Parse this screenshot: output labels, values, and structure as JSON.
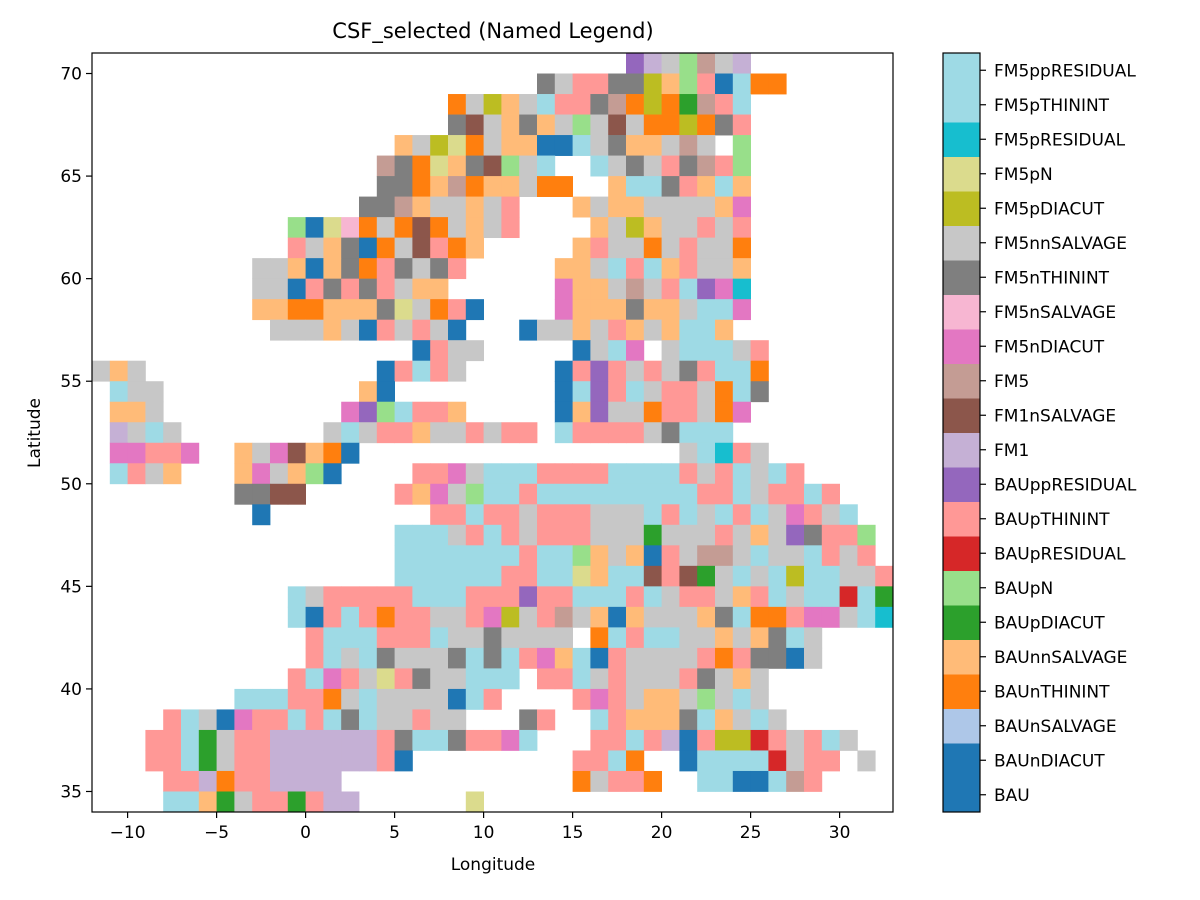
{
  "chart_data": {
    "type": "heatmap",
    "title": "CSF_selected (Named Legend)",
    "xlabel": "Longitude",
    "ylabel": "Latitude",
    "xlim": [
      -12,
      33
    ],
    "ylim": [
      34,
      71
    ],
    "x_ticks": [
      -10,
      -5,
      0,
      5,
      10,
      15,
      20,
      25,
      30
    ],
    "y_ticks": [
      35,
      40,
      45,
      50,
      55,
      60,
      65,
      70
    ],
    "x_tick_labels": [
      "−10",
      "−5",
      "0",
      "5",
      "10",
      "15",
      "20",
      "25",
      "30"
    ],
    "y_tick_labels": [
      "35",
      "40",
      "45",
      "50",
      "55",
      "60",
      "65",
      "70"
    ],
    "grid": false,
    "cell_size_degrees": 1,
    "colorbar": {
      "placement": "right",
      "categories": [
        "BAU",
        "BAUnDIACUT",
        "BAUnSALVAGE",
        "BAUnTHININT",
        "BAUnnSALVAGE",
        "BAUpDIACUT",
        "BAUpN",
        "BAUpRESIDUAL",
        "BAUpTHININT",
        "BAUppRESIDUAL",
        "FM1",
        "FM1nSALVAGE",
        "FM5",
        "FM5nDIACUT",
        "FM5nSALVAGE",
        "FM5nTHININT",
        "FM5nnSALVAGE",
        "FM5pDIACUT",
        "FM5pN",
        "FM5pRESIDUAL",
        "FM5pTHININT",
        "FM5ppRESIDUAL"
      ],
      "colors": [
        "#1f77b4",
        "#1f77b4",
        "#aec7e8",
        "#ff7f0e",
        "#ffbb78",
        "#2ca02c",
        "#98df8a",
        "#d62728",
        "#ff9896",
        "#9467bd",
        "#c5b0d5",
        "#8c564b",
        "#c49c94",
        "#e377c2",
        "#f7b6d2",
        "#7f7f7f",
        "#c7c7c7",
        "#bcbd22",
        "#dbdb8d",
        "#17becf",
        "#9edae5",
        "#9edae5"
      ]
    },
    "palette_keys": {
      "B": "#1f77b4",
      "O": "#ff7f0e",
      "o": "#ffbb78",
      "G": "#2ca02c",
      "g": "#98df8a",
      "R": "#d62728",
      "r": "#ff9896",
      "P": "#9467bd",
      "p": "#c5b0d5",
      "N": "#8c564b",
      "n": "#c49c94",
      "K": "#e377c2",
      "k": "#f7b6d2",
      "D": "#7f7f7f",
      "S": "#c7c7c7",
      "Y": "#bcbd22",
      "y": "#dbdb8d",
      "C": "#17becf",
      "c": "#9edae5"
    },
    "grid_cells": {
      "lon_start": -12,
      "lat_top": 71,
      "rows": [
        "                              PpSgnSp     ",
        "                         DSrrDDYogrBcOO",
        "                    OSYoScrrDnOYOGnrc",
        "                    DNSoDoSgSNSOOYODr",
        "                 oSYyOSooBBcSDooSnS g",
        "                nDOyoDNgSc  cSDSrDnrg",
        "                DDOonOooSOO  occDroco",
        "               DDnoSSoSr   oSooSSSSoK",
        "           gBykOSONOSoSr    oSYoSSrSr",
        "           rSoDBOSNrOo     orSSOSrSSO",
        "         SSoBoDOrDSDr     ooScrcorSSo",
        "         SSBrDrDrSoo      KooSnSrcPKC",
        "         ooOOoooDySOrB    KoooDooSccK",
        "          SSSoSBrSrSB   BSSoSroSocco",
        "                  BrSS     BScK ScccSr",
        "SoS             BrcrS     BrPrSrSDrccO",
        " cSS           oB         BcPrcSrrSOcD",
        " ooS          KPgcrro     BoPSSOrrSOK",
        " pScS        ScSrroSSrSrrscrrrrSDccc",
        " KKrrK  oSKNoOB                  ScCrS",
        " crSo   oKSogB    rrKScccrrrrccccrSrcScr",
        "        DDNN     roKSgccrcccccccccrrcSrrcr",
        "         B         rrcrrSrrrSSScrcScrcSKrSc",
        "                 cccSrcrSrrrSSSGSSSrSoSPDrrg",
        "                 cccccccrccgoSoBrSnnScSScrSr",
        "                 ccccccrrccyoccNrNGScScYccSSr",
        "           cSrrrrrcccrrrPrrcccrcSrrSorcSccRcG",
        "           cBrcrOrrSSrKYSrnSoBoSSSoDcOOrKKScCGB",
        "            rcccrrrcSSDSSSSsOcrccSSoSoDcS",
        "            rcScDSSSDcDcrKocBrSSSSrOrDDBS",
        "           rcKrSyrDSSccc rrcSrSSSrDSoS",
        "        cccrrOScSSSSBcr    rKrSooSgScS",
        "    rcSBKrrcrcDcSSrSS   Dr  croooDcoScS",
        "   rrcGSrrpppppprDccDrrKc   rrcrpBrYYRrSrcS",
        "   rrcGSrrpppppprB         rrcO  BccccRSrr S",
        "    rrpOrrpppp             OSrrO  ccBBcnr    rr",
        "    ccoGSrrGrpp      y                            ccSr  rrO",
        "    cc GrpG rp       Y      cc                          rBr  o",
        "    gppppGOpp                                                  rSo",
        "    SSSSOySSpp      y   oS                                  DD"
      ]
    }
  }
}
